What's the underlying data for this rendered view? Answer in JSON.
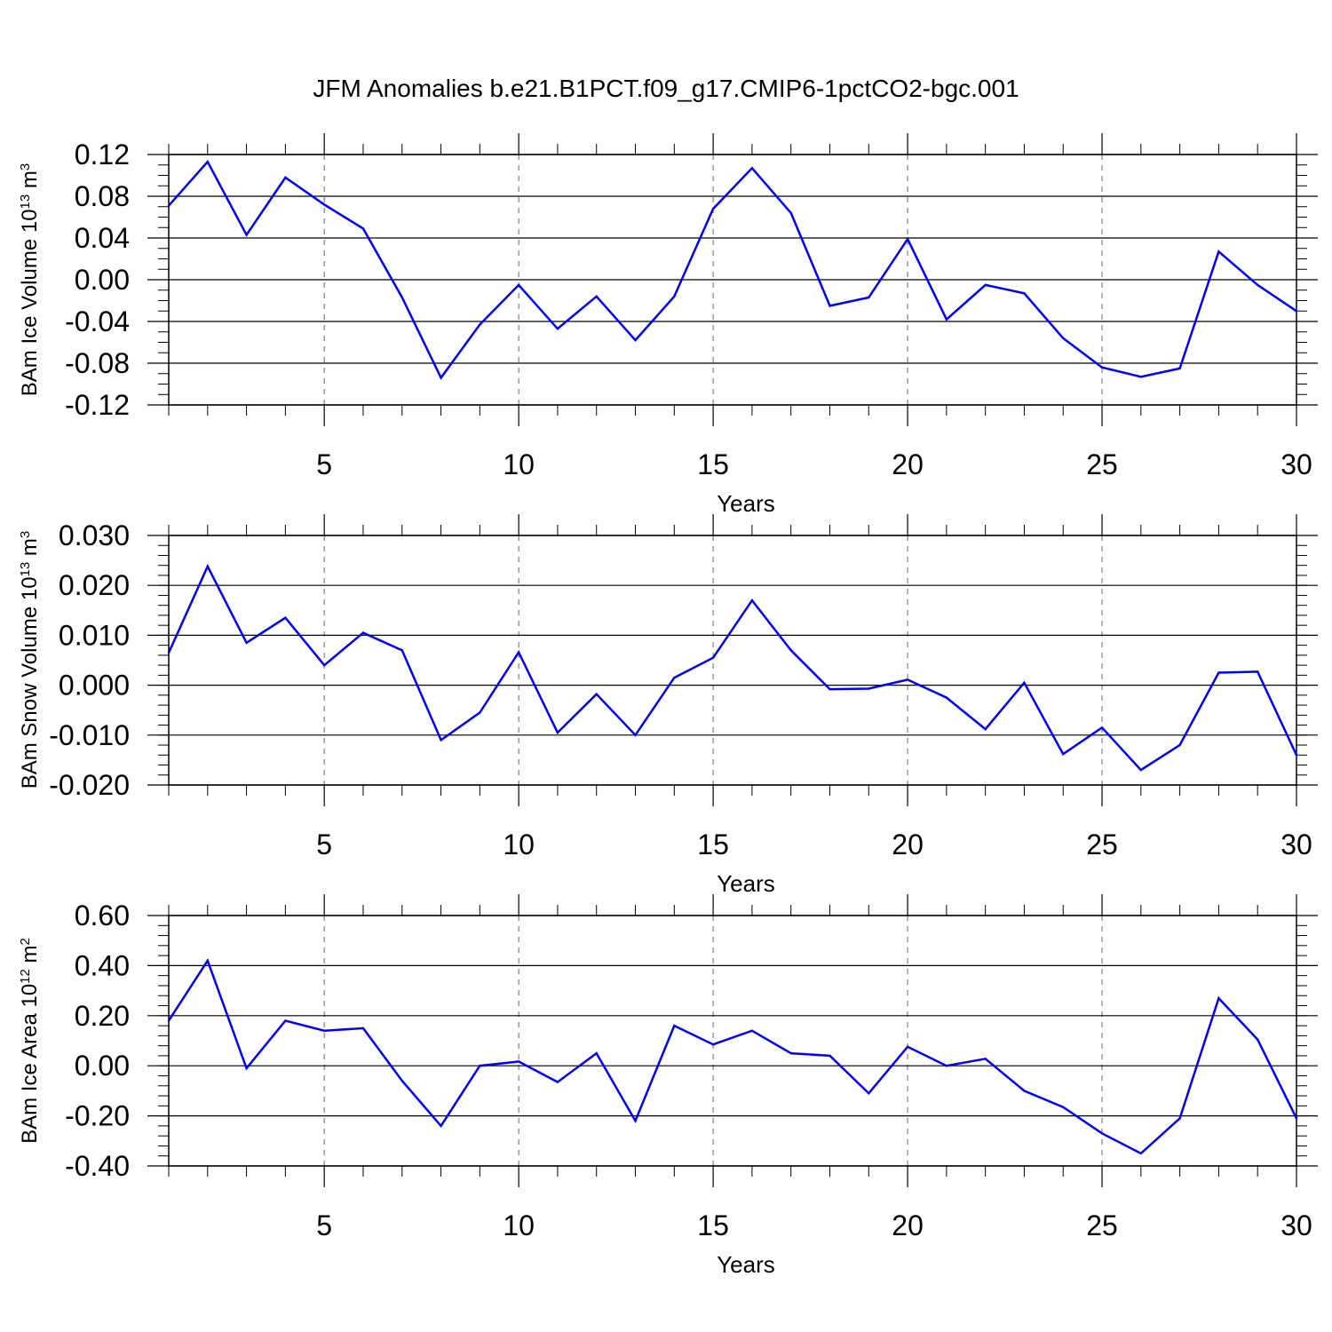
{
  "figure": {
    "title": "JFM Anomalies b.e21.B1PCT.f09_g17.CMIP6-1pctCO2-bgc.001"
  },
  "chart_data": [
    {
      "type": "line",
      "xlabel": "Years",
      "ylabel": {
        "text": "BAm Ice Volume 10",
        "sup1": "13",
        "mid": " m",
        "sup2": "3"
      },
      "xlim": [
        1,
        30
      ],
      "ylim": [
        -0.12,
        0.12
      ],
      "xticks": [
        5,
        10,
        15,
        20,
        25,
        30
      ],
      "xtick_labels": [
        "5",
        "10",
        "15",
        "20",
        "25",
        "30"
      ],
      "yticks": [
        -0.12,
        -0.08,
        -0.04,
        0.0,
        0.04,
        0.08,
        0.12
      ],
      "ytick_labels": [
        "-0.12",
        "-0.08",
        "-0.04",
        "0.00",
        "0.04",
        "0.08",
        "0.12"
      ],
      "grid": "vertical dashed at major x ticks",
      "line_color": "#0000ff",
      "x": [
        1,
        2,
        3,
        4,
        5,
        6,
        7,
        8,
        9,
        10,
        11,
        12,
        13,
        14,
        15,
        16,
        17,
        18,
        19,
        20,
        21,
        22,
        23,
        24,
        25,
        26,
        27,
        28,
        29,
        30
      ],
      "values": [
        0.071,
        0.113,
        0.043,
        0.098,
        0.072,
        0.049,
        -0.017,
        -0.094,
        -0.043,
        -0.005,
        -0.047,
        -0.016,
        -0.058,
        -0.016,
        0.068,
        0.107,
        0.064,
        -0.025,
        -0.017,
        0.039,
        -0.038,
        -0.005,
        -0.013,
        -0.056,
        -0.084,
        -0.093,
        -0.085,
        0.027,
        -0.005,
        -0.03
      ]
    },
    {
      "type": "line",
      "xlabel": "Years",
      "ylabel": {
        "text": "BAm Snow Volume 10",
        "sup1": "13",
        "mid": " m",
        "sup2": "3"
      },
      "xlim": [
        1,
        30
      ],
      "ylim": [
        -0.02,
        0.03
      ],
      "xticks": [
        5,
        10,
        15,
        20,
        25,
        30
      ],
      "xtick_labels": [
        "5",
        "10",
        "15",
        "20",
        "25",
        "30"
      ],
      "yticks": [
        -0.02,
        -0.01,
        0.0,
        0.01,
        0.02,
        0.03
      ],
      "ytick_labels": [
        "-0.020",
        "-0.010",
        "0.000",
        "0.010",
        "0.020",
        "0.030"
      ],
      "grid": "vertical dashed at major x ticks",
      "line_color": "#0000ff",
      "x": [
        1,
        2,
        3,
        4,
        5,
        6,
        7,
        8,
        9,
        10,
        11,
        12,
        13,
        14,
        15,
        16,
        17,
        18,
        19,
        20,
        21,
        22,
        23,
        24,
        25,
        26,
        27,
        28,
        29,
        30
      ],
      "values": [
        0.0065,
        0.0238,
        0.0085,
        0.0135,
        0.004,
        0.0105,
        0.007,
        -0.011,
        -0.0055,
        0.0066,
        -0.0095,
        -0.0018,
        -0.01,
        0.0015,
        0.0055,
        0.017,
        0.007,
        -0.0008,
        -0.0007,
        0.0011,
        -0.0025,
        -0.0088,
        0.0005,
        -0.0138,
        -0.0085,
        -0.017,
        -0.012,
        0.0025,
        0.0027,
        -0.014
      ]
    },
    {
      "type": "line",
      "xlabel": "Years",
      "ylabel": {
        "text": "BAm Ice Area 10",
        "sup1": "12",
        "mid": " m",
        "sup2": "2"
      },
      "xlim": [
        1,
        30
      ],
      "ylim": [
        -0.4,
        0.6
      ],
      "xticks": [
        5,
        10,
        15,
        20,
        25,
        30
      ],
      "xtick_labels": [
        "5",
        "10",
        "15",
        "20",
        "25",
        "30"
      ],
      "yticks": [
        -0.4,
        -0.2,
        0.0,
        0.2,
        0.4,
        0.6
      ],
      "ytick_labels": [
        "-0.40",
        "-0.20",
        "0.00",
        "0.20",
        "0.40",
        "0.60"
      ],
      "grid": "vertical dashed at major x ticks",
      "line_color": "#0000ff",
      "x": [
        1,
        2,
        3,
        4,
        5,
        6,
        7,
        8,
        9,
        10,
        11,
        12,
        13,
        14,
        15,
        16,
        17,
        18,
        19,
        20,
        21,
        22,
        23,
        24,
        25,
        26,
        27,
        28,
        29,
        30
      ],
      "values": [
        0.18,
        0.42,
        -0.01,
        0.18,
        0.14,
        0.15,
        -0.06,
        -0.24,
        0.0,
        0.017,
        -0.065,
        0.05,
        -0.22,
        0.16,
        0.085,
        0.14,
        0.05,
        0.04,
        -0.11,
        0.076,
        0.0,
        0.028,
        -0.1,
        -0.165,
        -0.27,
        -0.35,
        -0.21,
        0.27,
        0.105,
        -0.21
      ]
    }
  ]
}
